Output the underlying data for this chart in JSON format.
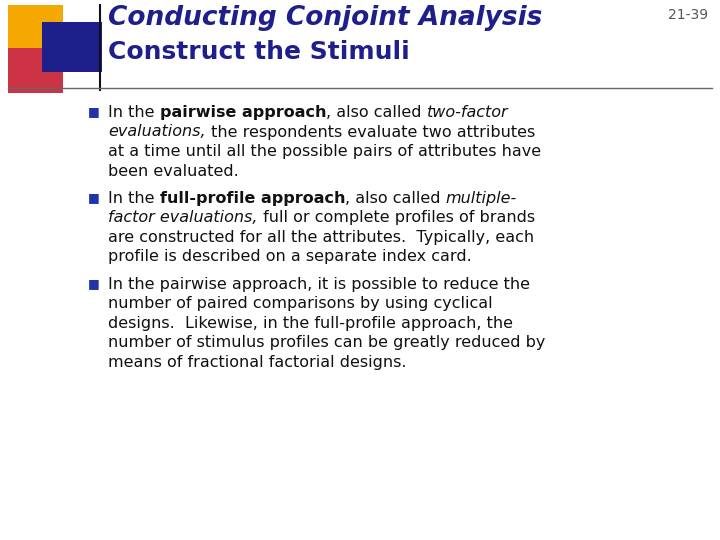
{
  "title_line1": "Conducting Conjoint Analysis",
  "title_line2": "Construct the Stimuli",
  "slide_number": "21-39",
  "background_color": "#FFFFFF",
  "title_color": "#1F1F8C",
  "slide_num_color": "#555555",
  "bullet_color": "#2233AA",
  "text_color": "#111111",
  "gold_color": "#F5A800",
  "red_color": "#CC3344",
  "blue_color": "#1F1F8C",
  "divider_color": "#666666",
  "font_size_title1": 19,
  "font_size_title2": 18,
  "font_size_body": 11.5,
  "font_size_slide_num": 10,
  "font_size_bullet": 9
}
